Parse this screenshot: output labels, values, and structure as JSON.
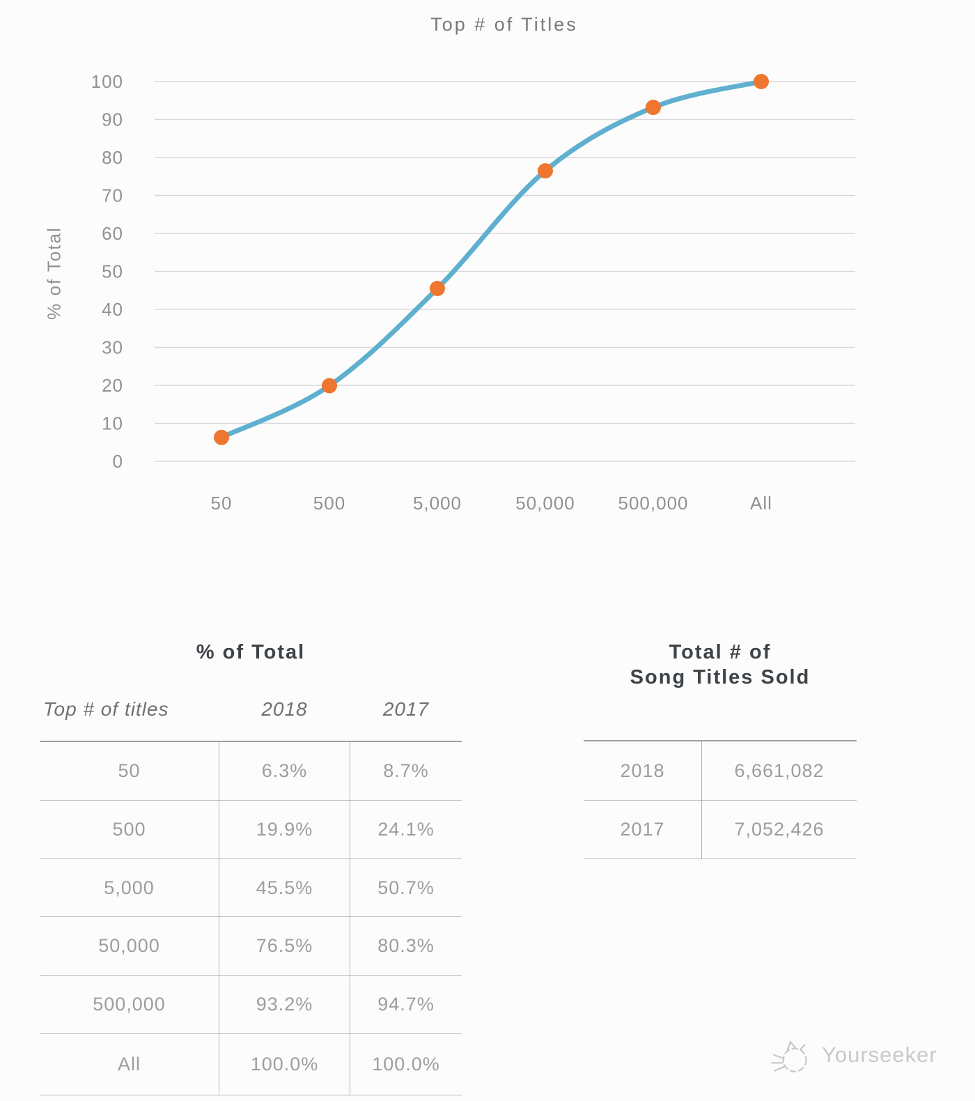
{
  "chart_data": {
    "type": "line",
    "title": "Top # of Titles",
    "xlabel": "",
    "ylabel": "% of Total",
    "categories": [
      "50",
      "500",
      "5,000",
      "50,000",
      "500,000",
      "All"
    ],
    "series": [
      {
        "name": "2018",
        "values": [
          6.3,
          19.9,
          45.5,
          76.5,
          93.2,
          100.0
        ]
      }
    ],
    "ylim": [
      0,
      100
    ],
    "y_ticks": [
      0,
      10,
      20,
      30,
      40,
      50,
      60,
      70,
      80,
      90,
      100
    ],
    "grid": true,
    "legend": "none",
    "line_color": "#5fafcf",
    "marker_color": "#ef762e",
    "grid_color": "#d8d8d8"
  },
  "tables": {
    "percent_of_total": {
      "title": "% of Total",
      "columns": [
        "Top # of titles",
        "2018",
        "2017"
      ],
      "rows": [
        [
          "50",
          "6.3%",
          "8.7%"
        ],
        [
          "500",
          "19.9%",
          "24.1%"
        ],
        [
          "5,000",
          "45.5%",
          "50.7%"
        ],
        [
          "50,000",
          "76.5%",
          "80.3%"
        ],
        [
          "500,000",
          "93.2%",
          "94.7%"
        ],
        [
          "All",
          "100.0%",
          "100.0%"
        ]
      ]
    },
    "total_titles_sold": {
      "title_line1": "Total # of",
      "title_line2": "Song Titles Sold",
      "rows": [
        [
          "2018",
          "6,661,082"
        ],
        [
          "2017",
          "7,052,426"
        ]
      ]
    }
  },
  "watermark": {
    "label": "Yourseeker",
    "icon": "cat-doodle-icon"
  }
}
